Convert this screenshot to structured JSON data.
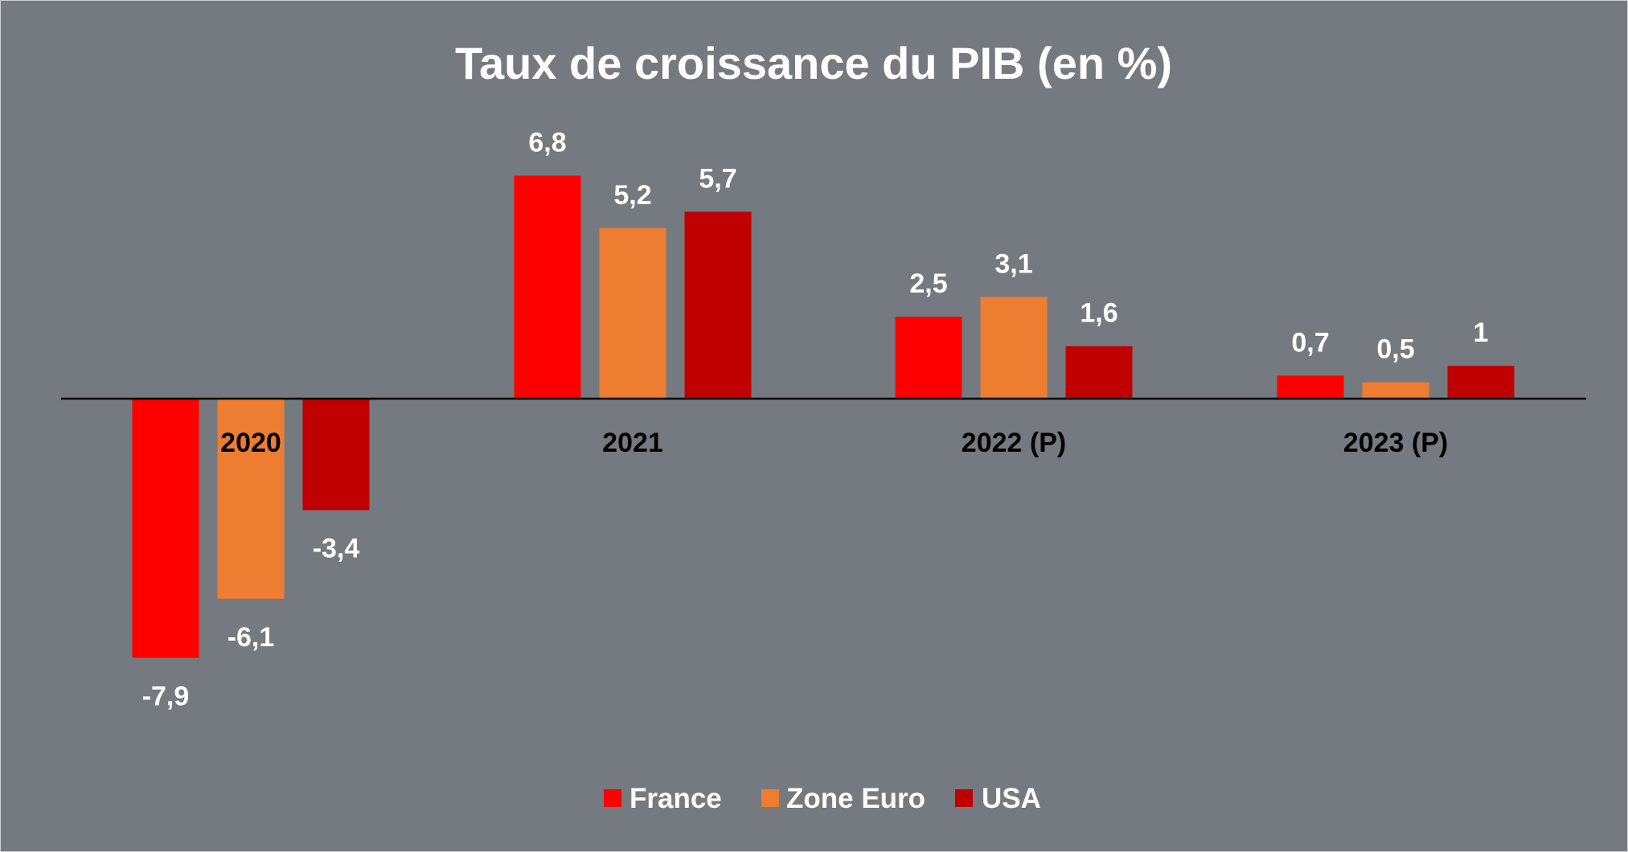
{
  "chart_data": {
    "type": "bar",
    "title": "Taux de croissance du PIB (en %)",
    "categories": [
      "2020",
      "2021",
      "2022 (P)",
      "2023 (P)"
    ],
    "series": [
      {
        "name": "France",
        "color": "#ff0000",
        "values": [
          -7.9,
          6.8,
          2.5,
          0.7
        ],
        "labels": [
          "-7,9",
          "6,8",
          "2,5",
          "0,7"
        ]
      },
      {
        "name": "Zone Euro",
        "color": "#ed7d31",
        "values": [
          -6.1,
          5.2,
          3.1,
          0.5
        ],
        "labels": [
          "-6,1",
          "5,2",
          "3,1",
          "0,5"
        ]
      },
      {
        "name": "USA",
        "color": "#c00000",
        "values": [
          -3.4,
          5.7,
          1.6,
          1
        ],
        "labels": [
          "-3,4",
          "5,7",
          "1,6",
          "1"
        ]
      }
    ],
    "ylim": [
      -9,
      8
    ],
    "grid": false,
    "legend_position": "bottom",
    "background": "#757a80"
  }
}
